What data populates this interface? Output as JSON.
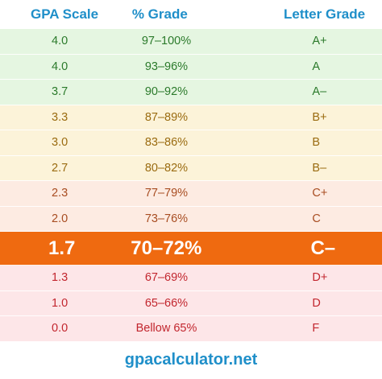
{
  "header": {
    "col1": "GPA Scale",
    "col2": "% Grade",
    "col3": "Letter Grade"
  },
  "rows": [
    {
      "gpa": "4.0",
      "percent": "97–100%",
      "letter": "A+",
      "band": "green"
    },
    {
      "gpa": "4.0",
      "percent": "93–96%",
      "letter": "A",
      "band": "green"
    },
    {
      "gpa": "3.7",
      "percent": "90–92%",
      "letter": "A–",
      "band": "green"
    },
    {
      "gpa": "3.3",
      "percent": "87–89%",
      "letter": "B+",
      "band": "yellow"
    },
    {
      "gpa": "3.0",
      "percent": "83–86%",
      "letter": "B",
      "band": "yellow"
    },
    {
      "gpa": "2.7",
      "percent": "80–82%",
      "letter": "B–",
      "band": "yellow"
    },
    {
      "gpa": "2.3",
      "percent": "77–79%",
      "letter": "C+",
      "band": "peach"
    },
    {
      "gpa": "2.0",
      "percent": "73–76%",
      "letter": "C",
      "band": "peach"
    },
    {
      "gpa": "1.7",
      "percent": "70–72%",
      "letter": "C–",
      "band": "highlight"
    },
    {
      "gpa": "1.3",
      "percent": "67–69%",
      "letter": "D+",
      "band": "pink"
    },
    {
      "gpa": "1.0",
      "percent": "65–66%",
      "letter": "D",
      "band": "pink"
    },
    {
      "gpa": "0.0",
      "percent": "Bellow 65%",
      "letter": "F",
      "band": "pink"
    }
  ],
  "footer": "gpacalculator.net",
  "colors": {
    "header_text": "#1f8fc9",
    "highlight_bg": "#ef6a10",
    "green_band": "#e5f6e1",
    "yellow_band": "#fcf3d9",
    "peach_band": "#fdebe2",
    "pink_band": "#fde6e8"
  }
}
